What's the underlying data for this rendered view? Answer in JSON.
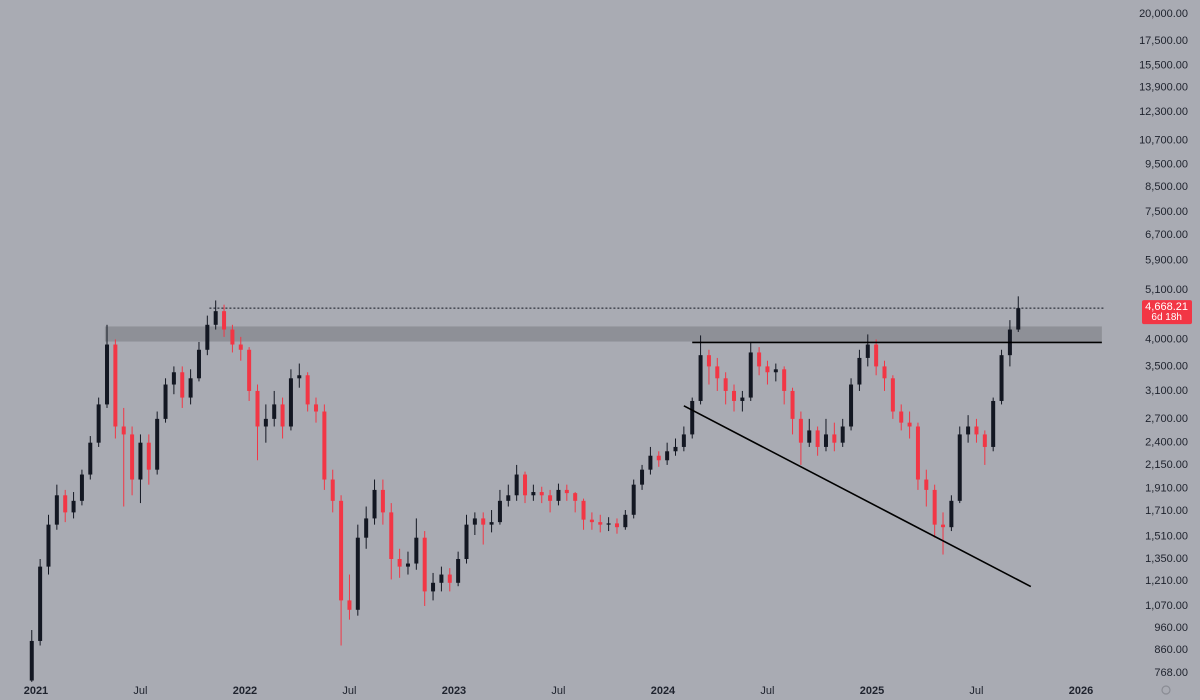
{
  "chart_data": {
    "type": "candlestick",
    "yscale": "log",
    "grid": false,
    "up_color": "#131722",
    "down_color": "#f23645",
    "background": "#a9abb3",
    "xlim": [
      2020.828,
      2026.115
    ],
    "ylim": [
      731,
      21440
    ],
    "xticks": [
      2021,
      {
        "value": 2021.5,
        "label": "Jul"
      },
      2022,
      {
        "value": 2022.5,
        "label": "Jul"
      },
      2023,
      {
        "value": 2023.5,
        "label": "Jul"
      },
      2024,
      {
        "value": 2024.5,
        "label": "Jul"
      },
      2025,
      {
        "value": 2025.5,
        "label": "Jul"
      },
      2026
    ],
    "yticks": [
      {
        "value": 768,
        "label": "768.00"
      },
      {
        "value": 860,
        "label": "860.00"
      },
      {
        "value": 960,
        "label": "960.00"
      },
      {
        "value": 1070,
        "label": "1,070.00"
      },
      {
        "value": 1210,
        "label": "1,210.00"
      },
      {
        "value": 1350,
        "label": "1,350.00"
      },
      {
        "value": 1510,
        "label": "1,510.00"
      },
      {
        "value": 1710,
        "label": "1,710.00"
      },
      {
        "value": 1910,
        "label": "1,910.00"
      },
      {
        "value": 2150,
        "label": "2,150.00"
      },
      {
        "value": 2400,
        "label": "2,400.00"
      },
      {
        "value": 2700,
        "label": "2,700.00"
      },
      {
        "value": 3100,
        "label": "3,100.00"
      },
      {
        "value": 3500,
        "label": "3,500.00"
      },
      {
        "value": 4000,
        "label": "4,000.00"
      },
      {
        "value": 5100,
        "label": "5,100.00"
      },
      {
        "value": 5900,
        "label": "5,900.00"
      },
      {
        "value": 6700,
        "label": "6,700.00"
      },
      {
        "value": 7500,
        "label": "7,500.00"
      },
      {
        "value": 8500,
        "label": "8,500.00"
      },
      {
        "value": 9500,
        "label": "9,500.00"
      },
      {
        "value": 10700,
        "label": "10,700.00"
      },
      {
        "value": 12300,
        "label": "12,300.00"
      },
      {
        "value": 13900,
        "label": "13,900.00"
      },
      {
        "value": 15500,
        "label": "15,500.00"
      },
      {
        "value": 17500,
        "label": "17,500.00"
      },
      {
        "value": 20000,
        "label": "20,000.00"
      }
    ],
    "x": [
      2020.98,
      2021.02,
      2021.06,
      2021.1,
      2021.14,
      2021.18,
      2021.22,
      2021.26,
      2021.3,
      2021.34,
      2021.38,
      2021.42,
      2021.46,
      2021.5,
      2021.54,
      2021.58,
      2021.62,
      2021.66,
      2021.7,
      2021.74,
      2021.78,
      2021.82,
      2021.86,
      2021.9,
      2021.94,
      2021.98,
      2022.02,
      2022.06,
      2022.1,
      2022.14,
      2022.18,
      2022.22,
      2022.26,
      2022.3,
      2022.34,
      2022.38,
      2022.42,
      2022.46,
      2022.5,
      2022.54,
      2022.58,
      2022.62,
      2022.66,
      2022.7,
      2022.74,
      2022.78,
      2022.82,
      2022.86,
      2022.9,
      2022.94,
      2022.98,
      2023.02,
      2023.06,
      2023.1,
      2023.14,
      2023.18,
      2023.22,
      2023.26,
      2023.3,
      2023.34,
      2023.38,
      2023.42,
      2023.46,
      2023.5,
      2023.54,
      2023.58,
      2023.62,
      2023.66,
      2023.7,
      2023.74,
      2023.78,
      2023.82,
      2023.86,
      2023.9,
      2023.94,
      2023.98,
      2024.02,
      2024.06,
      2024.1,
      2024.14,
      2024.18,
      2024.22,
      2024.26,
      2024.3,
      2024.34,
      2024.38,
      2024.42,
      2024.46,
      2024.5,
      2024.54,
      2024.58,
      2024.62,
      2024.66,
      2024.7,
      2024.74,
      2024.78,
      2024.82,
      2024.86,
      2024.9,
      2024.94,
      2024.98,
      2025.02,
      2025.06,
      2025.1,
      2025.14,
      2025.18,
      2025.22,
      2025.26,
      2025.3,
      2025.34,
      2025.38,
      2025.42,
      2025.46,
      2025.5,
      2025.54,
      2025.58,
      2025.62,
      2025.66,
      2025.7
    ],
    "open": [
      740,
      900,
      1300,
      1600,
      1850,
      1700,
      1800,
      2050,
      2400,
      2900,
      3900,
      2600,
      2500,
      2000,
      2400,
      2100,
      2700,
      3200,
      3400,
      3000,
      3300,
      3800,
      4300,
      4600,
      4200,
      3900,
      3800,
      3100,
      2600,
      2700,
      2900,
      2600,
      3300,
      3350,
      2900,
      2800,
      2000,
      1800,
      1100,
      1050,
      1500,
      1650,
      1900,
      1700,
      1350,
      1300,
      1320,
      1500,
      1150,
      1200,
      1250,
      1200,
      1350,
      1600,
      1650,
      1600,
      1620,
      1800,
      1850,
      2050,
      1850,
      1880,
      1850,
      1800,
      1900,
      1870,
      1800,
      1640,
      1620,
      1600,
      1610,
      1580,
      1680,
      1950,
      2100,
      2250,
      2200,
      2300,
      2350,
      2500,
      2950,
      3700,
      3500,
      3300,
      3100,
      2950,
      3000,
      3750,
      3500,
      3400,
      3450,
      3100,
      2700,
      2400,
      2550,
      2350,
      2500,
      2400,
      2600,
      3200,
      3650,
      3900,
      3500,
      3300,
      2800,
      2650,
      2600,
      2000,
      1900,
      1600,
      1580,
      1800,
      2500,
      2600,
      2500,
      2350,
      2950,
      3700,
      4200
    ],
    "high": [
      950,
      1350,
      1680,
      1950,
      1900,
      1880,
      2100,
      2480,
      3000,
      4300,
      4000,
      2850,
      2600,
      2500,
      2500,
      2800,
      3300,
      3500,
      3500,
      3450,
      3950,
      4500,
      4850,
      4750,
      4300,
      4050,
      3850,
      3200,
      2900,
      3100,
      3000,
      3450,
      3550,
      3400,
      3000,
      2900,
      2100,
      1850,
      1250,
      1600,
      1750,
      2000,
      2000,
      1780,
      1420,
      1400,
      1650,
      1550,
      1260,
      1300,
      1290,
      1400,
      1680,
      1700,
      1700,
      1720,
      1900,
      1950,
      2150,
      2080,
      1950,
      1930,
      1900,
      1960,
      1950,
      1880,
      1820,
      1700,
      1680,
      1660,
      1650,
      1720,
      2000,
      2150,
      2350,
      2300,
      2400,
      2450,
      2600,
      3000,
      4080,
      3800,
      3650,
      3400,
      3200,
      3100,
      3950,
      3850,
      3600,
      3550,
      3500,
      3150,
      2800,
      2700,
      2600,
      2700,
      2650,
      2700,
      3300,
      3800,
      4100,
      4000,
      3600,
      3350,
      2900,
      2800,
      2650,
      2100,
      1950,
      1700,
      1850,
      2600,
      2750,
      2700,
      2550,
      3000,
      3800,
      4400,
      4950
    ],
    "low": [
      735,
      880,
      1250,
      1560,
      1620,
      1650,
      1760,
      2000,
      2350,
      2850,
      2450,
      1750,
      1850,
      1780,
      1950,
      2050,
      2650,
      3050,
      2850,
      2900,
      3250,
      3700,
      4200,
      4050,
      3750,
      3600,
      2950,
      2200,
      2400,
      2600,
      2450,
      2550,
      3150,
      2800,
      2650,
      1900,
      1700,
      880,
      1000,
      1020,
      1420,
      1600,
      1600,
      1220,
      1230,
      1250,
      1280,
      1070,
      1100,
      1150,
      1150,
      1180,
      1320,
      1520,
      1450,
      1540,
      1600,
      1750,
      1800,
      1780,
      1800,
      1780,
      1700,
      1760,
      1800,
      1700,
      1560,
      1560,
      1540,
      1550,
      1530,
      1560,
      1650,
      1900,
      2050,
      2130,
      2150,
      2250,
      2300,
      2450,
      2900,
      3200,
      3100,
      2900,
      2800,
      2800,
      2950,
      3350,
      3200,
      3250,
      2900,
      2500,
      2150,
      2350,
      2250,
      2300,
      2300,
      2350,
      2550,
      3100,
      3500,
      3350,
      3100,
      2700,
      2550,
      2450,
      1900,
      1750,
      1500,
      1380,
      1550,
      1780,
      2400,
      2400,
      2150,
      2300,
      2900,
      3500,
      4150
    ],
    "close": [
      900,
      1300,
      1600,
      1850,
      1700,
      1800,
      2050,
      2400,
      2900,
      3900,
      2600,
      2500,
      2000,
      2400,
      2100,
      2700,
      3200,
      3400,
      3000,
      3300,
      3800,
      4300,
      4600,
      4200,
      3900,
      3800,
      3100,
      2600,
      2700,
      2900,
      2600,
      3300,
      3350,
      2900,
      2800,
      2000,
      1800,
      1100,
      1050,
      1500,
      1650,
      1900,
      1700,
      1350,
      1300,
      1320,
      1500,
      1150,
      1200,
      1250,
      1200,
      1350,
      1600,
      1650,
      1600,
      1620,
      1800,
      1850,
      2050,
      1850,
      1880,
      1850,
      1800,
      1900,
      1870,
      1800,
      1640,
      1620,
      1600,
      1610,
      1580,
      1680,
      1950,
      2100,
      2250,
      2200,
      2300,
      2350,
      2500,
      2950,
      3700,
      3500,
      3300,
      3100,
      2950,
      3000,
      3750,
      3500,
      3400,
      3450,
      3100,
      2700,
      2400,
      2550,
      2350,
      2500,
      2400,
      2600,
      3200,
      3650,
      3900,
      3500,
      3300,
      2800,
      2650,
      2600,
      2000,
      1900,
      1600,
      1580,
      1800,
      2500,
      2600,
      2500,
      2350,
      2950,
      3700,
      4200,
      4668.21
    ],
    "zone": {
      "low": 3958,
      "high": 4265,
      "x": [
        2021.33,
        2026.1
      ],
      "color": "#8e9097"
    },
    "level": {
      "value": 3940,
      "x": [
        2024.14,
        2026.1
      ],
      "color": "#000000"
    },
    "trendline": {
      "x": [
        2024.1,
        2025.76
      ],
      "y": [
        2880,
        1178
      ],
      "color": "#000000"
    },
    "last_price": {
      "value": 4668.21,
      "label": "4,668.21",
      "x_start": 2021.83,
      "color": "#f23645"
    },
    "countdown": "6d 18h"
  }
}
